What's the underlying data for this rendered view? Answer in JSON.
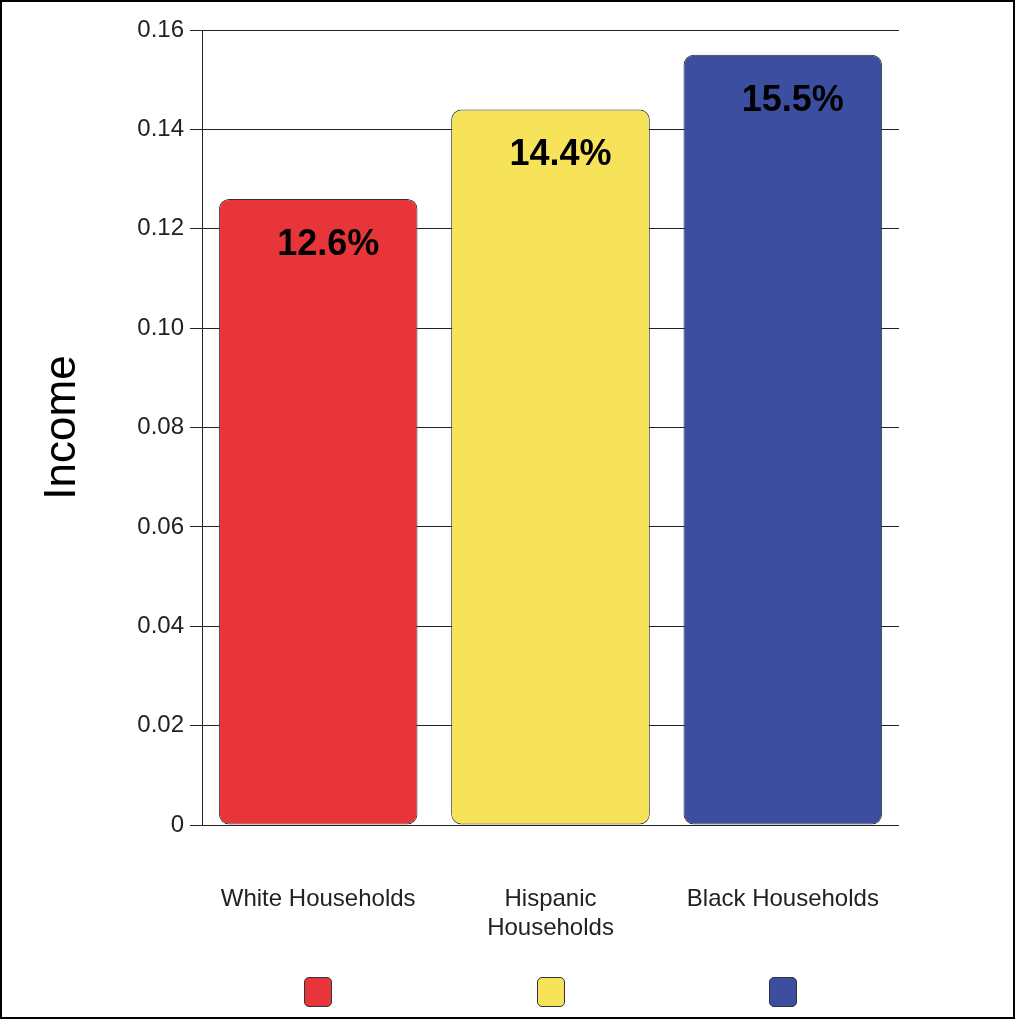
{
  "chart_data": {
    "type": "bar",
    "ylabel": "Income",
    "categories": [
      "White Households",
      "Hispanic Households",
      "Black Households"
    ],
    "values": [
      0.126,
      0.144,
      0.155
    ],
    "colors": [
      "#e8353a",
      "#f7e35a",
      "#3c4ea0"
    ],
    "value_labels": [
      "12.6%",
      "14.4%",
      "15.5%"
    ],
    "ylim": [
      0,
      0.16
    ],
    "yticks": [
      0,
      0.02,
      0.04,
      0.06,
      0.08,
      {
        "value": 0.1,
        "label": "0.10"
      },
      0.12,
      0.14,
      0.16
    ],
    "grid": "y"
  }
}
